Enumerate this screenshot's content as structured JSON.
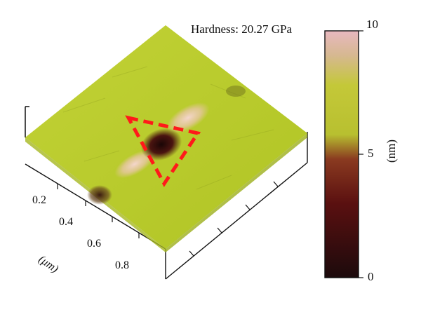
{
  "annotation": {
    "hardness": "Hardness: 20.27 GPa"
  },
  "colorbar": {
    "max_label": "10",
    "mid_label": "5",
    "min_label": "0",
    "unit_label": "(nm)",
    "range": [
      0,
      10
    ],
    "colors": [
      "#1c0a0c",
      "#5a1010",
      "#8a3a20",
      "#b8c030",
      "#c4c838",
      "#d6b890",
      "#e8b8c0"
    ]
  },
  "axis": {
    "ticks": [
      "0.2",
      "0.4",
      "0.6",
      "0.8"
    ],
    "unit_label": "(μm)"
  },
  "surface": {
    "base_color": "#b9cc2a",
    "indent_color": "#2a0a0a",
    "pileup_color": "#e8c4b8",
    "marker_color": "#ff1a1a"
  }
}
